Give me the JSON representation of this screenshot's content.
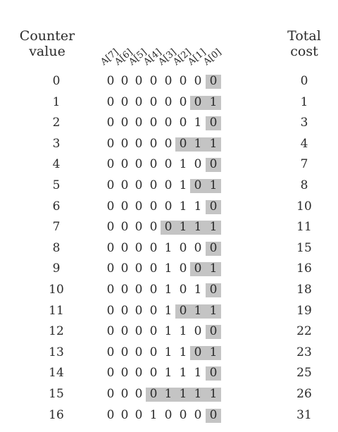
{
  "headers": {
    "counter_line1": "Counter",
    "counter_line2": "value",
    "total_line1": "Total",
    "total_line2": "cost",
    "bits": [
      "A[7]",
      "A[6]",
      "A[5]",
      "A[4]",
      "A[3]",
      "A[2]",
      "A[1]",
      "A[0]"
    ]
  },
  "rows": [
    {
      "counter": "0",
      "bits": [
        "0",
        "0",
        "0",
        "0",
        "0",
        "0",
        "0",
        "0"
      ],
      "flipped": 1,
      "total": "0"
    },
    {
      "counter": "1",
      "bits": [
        "0",
        "0",
        "0",
        "0",
        "0",
        "0",
        "0",
        "1"
      ],
      "flipped": 2,
      "total": "1"
    },
    {
      "counter": "2",
      "bits": [
        "0",
        "0",
        "0",
        "0",
        "0",
        "0",
        "1",
        "0"
      ],
      "flipped": 1,
      "total": "3"
    },
    {
      "counter": "3",
      "bits": [
        "0",
        "0",
        "0",
        "0",
        "0",
        "0",
        "1",
        "1"
      ],
      "flipped": 3,
      "total": "4"
    },
    {
      "counter": "4",
      "bits": [
        "0",
        "0",
        "0",
        "0",
        "0",
        "1",
        "0",
        "0"
      ],
      "flipped": 1,
      "total": "7"
    },
    {
      "counter": "5",
      "bits": [
        "0",
        "0",
        "0",
        "0",
        "0",
        "1",
        "0",
        "1"
      ],
      "flipped": 2,
      "total": "8"
    },
    {
      "counter": "6",
      "bits": [
        "0",
        "0",
        "0",
        "0",
        "0",
        "1",
        "1",
        "0"
      ],
      "flipped": 1,
      "total": "10"
    },
    {
      "counter": "7",
      "bits": [
        "0",
        "0",
        "0",
        "0",
        "0",
        "1",
        "1",
        "1"
      ],
      "flipped": 4,
      "total": "11"
    },
    {
      "counter": "8",
      "bits": [
        "0",
        "0",
        "0",
        "0",
        "1",
        "0",
        "0",
        "0"
      ],
      "flipped": 1,
      "total": "15"
    },
    {
      "counter": "9",
      "bits": [
        "0",
        "0",
        "0",
        "0",
        "1",
        "0",
        "0",
        "1"
      ],
      "flipped": 2,
      "total": "16"
    },
    {
      "counter": "10",
      "bits": [
        "0",
        "0",
        "0",
        "0",
        "1",
        "0",
        "1",
        "0"
      ],
      "flipped": 1,
      "total": "18"
    },
    {
      "counter": "11",
      "bits": [
        "0",
        "0",
        "0",
        "0",
        "1",
        "0",
        "1",
        "1"
      ],
      "flipped": 3,
      "total": "19"
    },
    {
      "counter": "12",
      "bits": [
        "0",
        "0",
        "0",
        "0",
        "1",
        "1",
        "0",
        "0"
      ],
      "flipped": 1,
      "total": "22"
    },
    {
      "counter": "13",
      "bits": [
        "0",
        "0",
        "0",
        "0",
        "1",
        "1",
        "0",
        "1"
      ],
      "flipped": 2,
      "total": "23"
    },
    {
      "counter": "14",
      "bits": [
        "0",
        "0",
        "0",
        "0",
        "1",
        "1",
        "1",
        "0"
      ],
      "flipped": 1,
      "total": "25"
    },
    {
      "counter": "15",
      "bits": [
        "0",
        "0",
        "0",
        "0",
        "1",
        "1",
        "1",
        "1"
      ],
      "flipped": 5,
      "total": "26"
    },
    {
      "counter": "16",
      "bits": [
        "0",
        "0",
        "0",
        "1",
        "0",
        "0",
        "0",
        "0"
      ],
      "flipped": 1,
      "total": "31"
    }
  ],
  "colors": {
    "highlight": "#c4c4c4",
    "text": "#2a2a2a"
  }
}
